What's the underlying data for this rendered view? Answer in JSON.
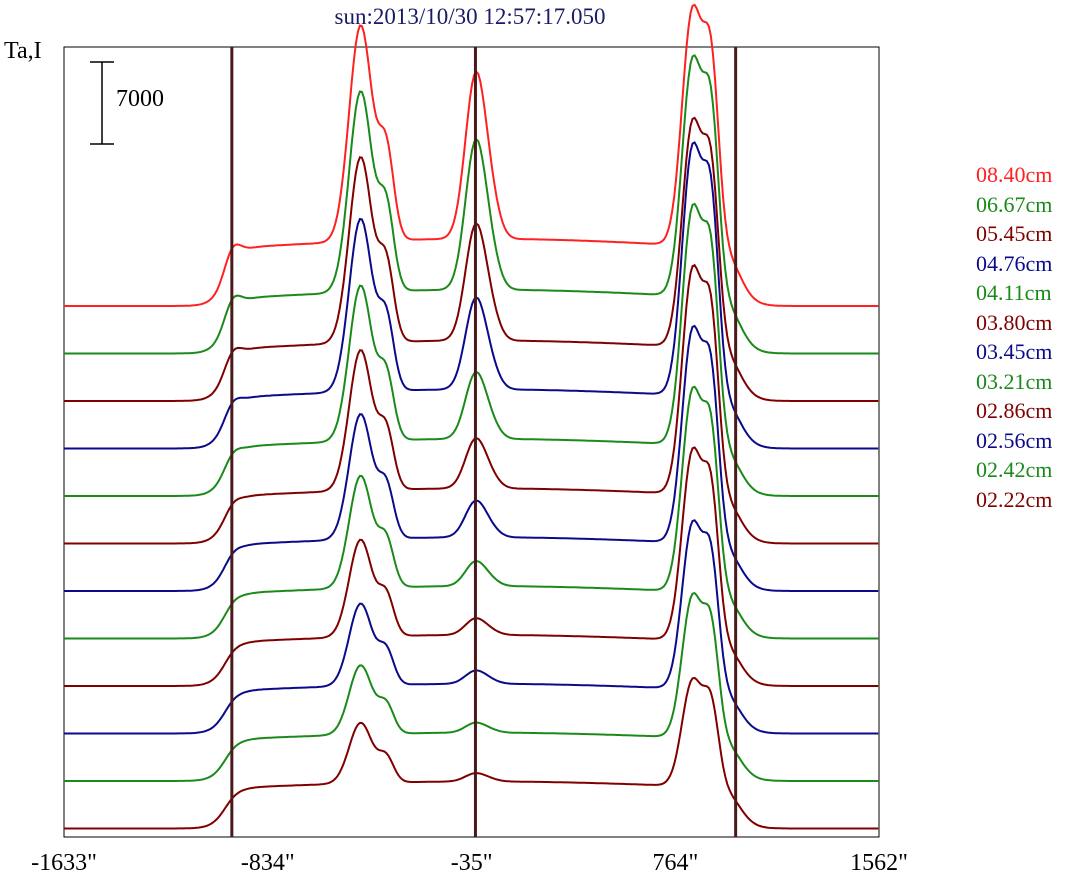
{
  "chart_data": {
    "type": "line",
    "title": "sun:2013/10/30 12:57:17.050",
    "ylabel": "Ta,I",
    "xlabel": "",
    "x_ticks": [
      "-1633\"",
      "-834\"",
      "-35\"",
      "764\"",
      "1562\""
    ],
    "xlim": [
      -1633,
      1562
    ],
    "scale_bar_label": "7000",
    "scale_bar_value": 7000,
    "vertical_lines_arcsec": [
      -975,
      -20,
      1000
    ],
    "grid": false,
    "legend_position": "right",
    "legend": [
      {
        "name": "08.40cm",
        "color": "#ff2020"
      },
      {
        "name": "06.67cm",
        "color": "#1a8a1a"
      },
      {
        "name": "05.45cm",
        "color": "#800000"
      },
      {
        "name": "04.76cm",
        "color": "#0a0a8a"
      },
      {
        "name": "04.11cm",
        "color": "#1a8a1a"
      },
      {
        "name": "03.80cm",
        "color": "#800000"
      },
      {
        "name": "03.45cm",
        "color": "#0a0a8a"
      },
      {
        "name": "03.21cm",
        "color": "#1a8a1a"
      },
      {
        "name": "02.86cm",
        "color": "#800000"
      },
      {
        "name": "02.56cm",
        "color": "#0a0a8a"
      },
      {
        "name": "02.42cm",
        "color": "#1a8a1a"
      },
      {
        "name": "02.22cm",
        "color": "#800000"
      }
    ],
    "series": [
      {
        "name": "08.40cm",
        "color": "#ff2020",
        "amplitude": 1.0,
        "plateau": 1.0,
        "hot_right": 1.0,
        "mid": 1.0
      },
      {
        "name": "06.67cm",
        "color": "#1a8a1a",
        "amplitude": 0.93,
        "plateau": 0.95,
        "hot_right": 1.0,
        "mid": 0.9
      },
      {
        "name": "05.45cm",
        "color": "#800000",
        "amplitude": 0.86,
        "plateau": 0.9,
        "hot_right": 0.95,
        "mid": 0.7
      },
      {
        "name": "04.76cm",
        "color": "#0a0a8a",
        "amplitude": 0.8,
        "plateau": 0.88,
        "hot_right": 1.05,
        "mid": 0.55
      },
      {
        "name": "04.11cm",
        "color": "#1a8a1a",
        "amplitude": 0.72,
        "plateau": 0.85,
        "hot_right": 1.0,
        "mid": 0.4
      },
      {
        "name": "03.80cm",
        "color": "#800000",
        "amplitude": 0.65,
        "plateau": 0.82,
        "hot_right": 0.95,
        "mid": 0.3
      },
      {
        "name": "03.45cm",
        "color": "#0a0a8a",
        "amplitude": 0.58,
        "plateau": 0.8,
        "hot_right": 0.9,
        "mid": 0.22
      },
      {
        "name": "03.21cm",
        "color": "#1a8a1a",
        "amplitude": 0.52,
        "plateau": 0.78,
        "hot_right": 0.85,
        "mid": 0.15
      },
      {
        "name": "02.86cm",
        "color": "#800000",
        "amplitude": 0.45,
        "plateau": 0.76,
        "hot_right": 0.8,
        "mid": 0.1
      },
      {
        "name": "02.56cm",
        "color": "#0a0a8a",
        "amplitude": 0.38,
        "plateau": 0.74,
        "hot_right": 0.7,
        "mid": 0.08
      },
      {
        "name": "02.42cm",
        "color": "#1a8a1a",
        "amplitude": 0.32,
        "plateau": 0.72,
        "hot_right": 0.6,
        "mid": 0.06
      },
      {
        "name": "02.22cm",
        "color": "#800000",
        "amplitude": 0.28,
        "plateau": 0.7,
        "hot_right": 0.45,
        "mid": 0.05
      }
    ]
  }
}
